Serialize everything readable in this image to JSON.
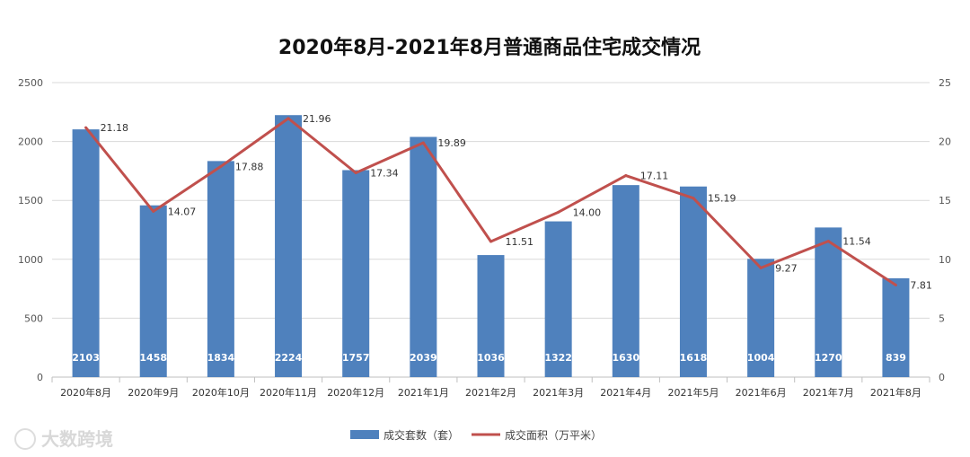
{
  "chart_data": {
    "type": "bar+line",
    "title": "2020年8月-2021年8月普通商品住宅成交情况",
    "categories": [
      "2020年8月",
      "2020年9月",
      "2020年10月",
      "2020年11月",
      "2020年12月",
      "2021年1月",
      "2021年2月",
      "2021年3月",
      "2021年4月",
      "2021年5月",
      "2021年6月",
      "2021年7月",
      "2021年8月"
    ],
    "series": [
      {
        "name": "成交套数（套）",
        "type": "bar",
        "axis": "left",
        "color": "#4f81bd",
        "values": [
          2103,
          1458,
          1834,
          2224,
          1757,
          2039,
          1036,
          1322,
          1630,
          1618,
          1004,
          1270,
          839
        ]
      },
      {
        "name": "成交面积（万平米）",
        "type": "line",
        "axis": "right",
        "color": "#c0504d",
        "values": [
          21.18,
          14.07,
          17.88,
          21.96,
          17.34,
          19.89,
          11.51,
          14.0,
          17.11,
          15.19,
          9.27,
          11.54,
          7.81
        ],
        "labels": [
          "21.18",
          "14.07",
          "17.88",
          "21.96",
          "17.34",
          "19.89",
          "11.51",
          "14.00",
          "17.11",
          "15.19",
          "9.27",
          "11.54",
          "7.81"
        ]
      }
    ],
    "y_left": {
      "min": 0,
      "max": 2500,
      "ticks": [
        "0",
        "500",
        "1000",
        "1500",
        "2000",
        "2500"
      ]
    },
    "y_right": {
      "min": 0,
      "max": 25,
      "ticks": [
        "0",
        "5",
        "10",
        "15",
        "20",
        "25"
      ]
    },
    "legend_position": "bottom-center",
    "grid": true
  },
  "watermark": "大数跨境"
}
